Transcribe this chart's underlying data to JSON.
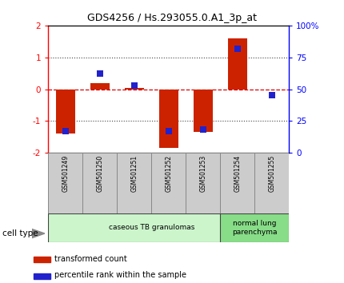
{
  "title": "GDS4256 / Hs.293055.0.A1_3p_at",
  "samples": [
    "GSM501249",
    "GSM501250",
    "GSM501251",
    "GSM501252",
    "GSM501253",
    "GSM501254",
    "GSM501255"
  ],
  "transformed_counts": [
    -1.4,
    0.2,
    0.05,
    -1.85,
    -1.35,
    1.6,
    -0.02
  ],
  "percentile_ranks": [
    17,
    62,
    53,
    17,
    18,
    82,
    45
  ],
  "ylim_left": [
    -2,
    2
  ],
  "ylim_right": [
    0,
    100
  ],
  "yticks_left": [
    -2,
    -1,
    0,
    1,
    2
  ],
  "yticks_right": [
    0,
    25,
    50,
    75,
    100
  ],
  "ytick_labels_right": [
    "0",
    "25",
    "50",
    "75",
    "100%"
  ],
  "bar_color": "#cc2200",
  "dot_color": "#2222cc",
  "zero_line_color": "#dd0000",
  "dotted_line_color": "#444444",
  "cell_types": [
    {
      "label": "caseous TB granulomas",
      "start": 0,
      "end": 5,
      "color": "#ccf5cc"
    },
    {
      "label": "normal lung\nparenchyma",
      "start": 5,
      "end": 6,
      "color": "#88dd88"
    }
  ],
  "cell_type_label": "cell type",
  "legend_items": [
    {
      "color": "#cc2200",
      "label": "transformed count"
    },
    {
      "color": "#2222cc",
      "label": "percentile rank within the sample"
    }
  ],
  "bar_width": 0.55,
  "dot_size": 30,
  "background_color": "#ffffff",
  "xlabel_box_color": "#cccccc",
  "xlabel_box_edge": "#888888"
}
